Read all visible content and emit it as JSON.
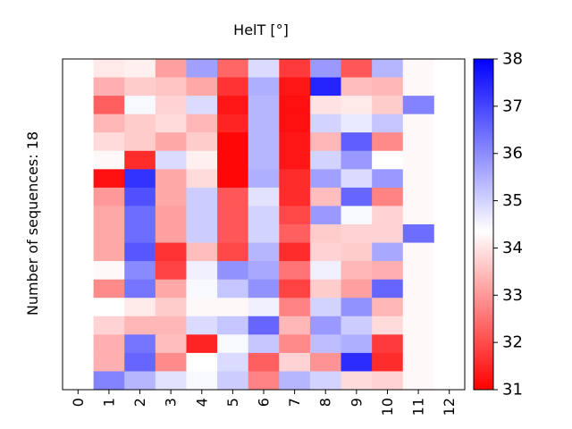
{
  "chart_data": {
    "type": "heatmap",
    "title": "HelT [°]",
    "ylabel": "Number of sequences: 18",
    "xlabel": "",
    "x_ticks": [
      "0",
      "1",
      "2",
      "3",
      "4",
      "5",
      "6",
      "7",
      "8",
      "9",
      "10",
      "11",
      "12"
    ],
    "columns": [
      1,
      2,
      3,
      4,
      5,
      6,
      7,
      8,
      9,
      10,
      11
    ],
    "n_rows": 18,
    "grid": false,
    "colorbar": {
      "colormap": "bwr_r",
      "vmin": 31,
      "vmax": 38,
      "ticks": [
        "31",
        "32",
        "33",
        "34",
        "35",
        "36",
        "37",
        "38"
      ],
      "low_color": "#ff0000",
      "mid_color": "#ffffff",
      "high_color": "#0000ff"
    },
    "values": [
      [
        34.2,
        34.3,
        33.2,
        35.8,
        32.4,
        35.0,
        31.8,
        35.9,
        32.2,
        35.5,
        34.4
      ],
      [
        33.4,
        33.8,
        33.7,
        33.3,
        31.7,
        35.6,
        31.3,
        37.5,
        33.6,
        33.5,
        34.4
      ],
      [
        32.3,
        34.6,
        33.9,
        35.0,
        31.3,
        35.5,
        31.2,
        34.1,
        34.2,
        33.8,
        36.2
      ],
      [
        33.5,
        33.8,
        34.0,
        33.5,
        31.5,
        35.5,
        31.2,
        35.1,
        34.8,
        35.3,
        34.4
      ],
      [
        34.0,
        33.8,
        33.3,
        33.8,
        31.1,
        35.5,
        31.3,
        33.5,
        36.7,
        32.9,
        34.4
      ],
      [
        34.4,
        31.6,
        35.0,
        34.3,
        31.1,
        35.5,
        31.3,
        35.1,
        35.9,
        34.5,
        34.4
      ],
      [
        31.2,
        37.3,
        33.3,
        34.0,
        31.1,
        35.6,
        31.6,
        35.8,
        35.0,
        35.9,
        34.4
      ],
      [
        33.1,
        36.9,
        33.3,
        35.2,
        32.2,
        34.9,
        31.6,
        33.6,
        36.6,
        32.8,
        34.4
      ],
      [
        33.3,
        36.5,
        33.2,
        35.2,
        32.2,
        35.1,
        32.0,
        35.9,
        34.6,
        33.9,
        34.4
      ],
      [
        33.3,
        36.5,
        33.2,
        35.2,
        32.2,
        35.1,
        32.3,
        33.8,
        33.9,
        33.9,
        36.5
      ],
      [
        33.3,
        36.8,
        31.7,
        33.6,
        32.0,
        35.5,
        31.6,
        33.9,
        33.8,
        35.7,
        34.4
      ],
      [
        34.4,
        36.1,
        31.9,
        34.7,
        36.0,
        35.7,
        32.6,
        34.7,
        33.5,
        33.4,
        34.4
      ],
      [
        32.9,
        36.4,
        33.3,
        34.6,
        35.3,
        36.0,
        31.9,
        33.8,
        33.2,
        36.6,
        34.4
      ],
      [
        34.5,
        34.2,
        33.8,
        34.4,
        34.4,
        34.7,
        32.8,
        35.1,
        36.0,
        33.5,
        34.4
      ],
      [
        33.9,
        33.5,
        33.5,
        35.0,
        35.3,
        36.6,
        33.5,
        35.9,
        35.2,
        34.0,
        34.4
      ],
      [
        33.4,
        36.4,
        33.6,
        31.5,
        34.6,
        35.3,
        32.9,
        35.4,
        35.6,
        31.8,
        34.4
      ],
      [
        33.4,
        36.6,
        32.9,
        34.5,
        35.0,
        32.3,
        33.9,
        33.0,
        37.4,
        31.6,
        34.4
      ],
      [
        36.2,
        35.5,
        34.9,
        34.6,
        35.2,
        32.8,
        35.5,
        35.1,
        34.0,
        33.9,
        34.4
      ]
    ]
  }
}
